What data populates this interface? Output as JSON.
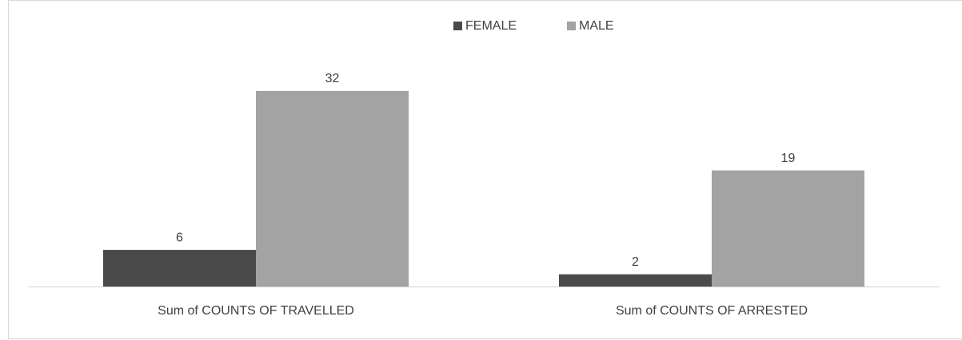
{
  "chart_data": {
    "type": "bar",
    "categories": [
      "Sum of COUNTS OF TRAVELLED",
      "Sum of COUNTS OF ARRESTED"
    ],
    "series": [
      {
        "name": "FEMALE",
        "color": "#4a4a4a",
        "values": [
          6,
          2
        ]
      },
      {
        "name": "MALE",
        "color": "#a3a3a3",
        "values": [
          32,
          19
        ]
      }
    ]
  }
}
